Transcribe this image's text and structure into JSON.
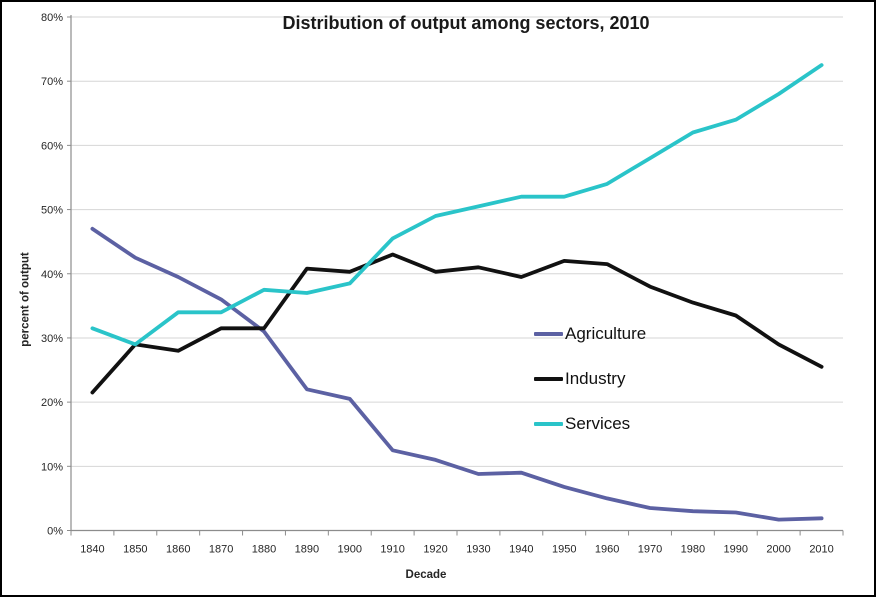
{
  "frame": {
    "background": "#ffffff",
    "border_color": "#000000"
  },
  "chart_data": {
    "type": "line",
    "title": "Distribution of output among sectors, 2010",
    "xlabel": "Decade",
    "ylabel": "percent of output",
    "ylim": [
      0,
      80
    ],
    "ytick_step": 10,
    "yticks": [
      "0%",
      "10%",
      "20%",
      "30%",
      "40%",
      "50%",
      "60%",
      "70%",
      "80%"
    ],
    "grid": true,
    "legend_position": "center-right",
    "categories": [
      "1840",
      "1850",
      "1860",
      "1870",
      "1880",
      "1890",
      "1900",
      "1910",
      "1920",
      "1930",
      "1940",
      "1950",
      "1960",
      "1970",
      "1980",
      "1990",
      "2000",
      "2010"
    ],
    "series": [
      {
        "name": "Agriculture",
        "color": "#5c61a3",
        "values": [
          47,
          42.5,
          39.5,
          36,
          31,
          22,
          20.5,
          12.5,
          11,
          8.8,
          9,
          6.8,
          5,
          3.5,
          3,
          2.8,
          1.7,
          1.9
        ]
      },
      {
        "name": "Industry",
        "color": "#111111",
        "values": [
          21.5,
          29,
          28,
          31.5,
          31.5,
          40.8,
          40.3,
          43,
          40.3,
          41,
          39.5,
          42,
          41.5,
          38,
          35.5,
          33.5,
          29,
          25.5
        ]
      },
      {
        "name": "Services",
        "color": "#2ac4c9",
        "values": [
          31.5,
          29,
          34,
          34,
          37.5,
          37,
          38.5,
          45.5,
          49,
          50.5,
          52,
          52,
          54,
          58,
          62,
          64,
          68,
          72.5
        ]
      }
    ],
    "colors": {
      "grid": "#d6d6d6",
      "axis": "#8c8c8c",
      "tick_text": "#262626",
      "title_text": "#1a1a1a"
    }
  }
}
